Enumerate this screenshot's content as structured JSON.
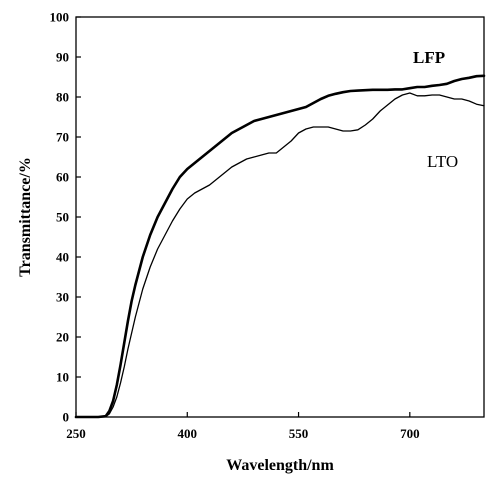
{
  "chart_data": {
    "type": "line",
    "title": "",
    "xlabel": "Wavelength/nm",
    "ylabel": "Transmittance/%",
    "xlim": [
      250,
      800
    ],
    "ylim": [
      0,
      100
    ],
    "xticks": [
      250,
      400,
      550,
      700
    ],
    "yticks": [
      0,
      10,
      20,
      30,
      40,
      50,
      60,
      70,
      80,
      90,
      100
    ],
    "grid": false,
    "legend": "inline labels near curves (upper-right)",
    "series": [
      {
        "name": "LFP",
        "color": "#000000",
        "line_weight": "bold",
        "x": [
          250,
          260,
          270,
          280,
          290,
          295,
          300,
          305,
          310,
          315,
          320,
          325,
          330,
          335,
          340,
          350,
          360,
          370,
          380,
          390,
          400,
          410,
          420,
          430,
          440,
          450,
          460,
          470,
          480,
          490,
          500,
          510,
          520,
          530,
          540,
          550,
          560,
          570,
          580,
          590,
          600,
          610,
          620,
          630,
          640,
          650,
          660,
          670,
          680,
          690,
          700,
          710,
          720,
          730,
          740,
          750,
          760,
          770,
          780,
          790,
          800
        ],
        "values": [
          0,
          0,
          0,
          0,
          0.2,
          1.5,
          4,
          8,
          13,
          18.5,
          24,
          29,
          33,
          36.5,
          40,
          45.5,
          50,
          53.5,
          57,
          60,
          62,
          63.5,
          65,
          66.5,
          68,
          69.5,
          71,
          72,
          73,
          74,
          74.5,
          75,
          75.5,
          76,
          76.5,
          77,
          77.5,
          78.5,
          79.5,
          80.3,
          80.8,
          81.2,
          81.5,
          81.6,
          81.7,
          81.8,
          81.8,
          81.8,
          81.9,
          81.9,
          82.2,
          82.5,
          82.5,
          82.8,
          83,
          83.3,
          84,
          84.5,
          84.8,
          85.2,
          85.3
        ]
      },
      {
        "name": "LTO",
        "color": "#000000",
        "line_weight": "normal",
        "x": [
          250,
          260,
          270,
          280,
          290,
          295,
          300,
          305,
          310,
          315,
          320,
          325,
          330,
          335,
          340,
          350,
          360,
          370,
          380,
          390,
          400,
          410,
          420,
          430,
          440,
          450,
          460,
          470,
          480,
          490,
          500,
          510,
          520,
          530,
          540,
          550,
          560,
          570,
          580,
          590,
          600,
          610,
          620,
          630,
          640,
          650,
          660,
          670,
          680,
          690,
          700,
          710,
          720,
          730,
          740,
          750,
          760,
          770,
          780,
          790,
          800
        ],
        "values": [
          0,
          0,
          0,
          0,
          0.1,
          0.8,
          2.5,
          5,
          8.5,
          12.5,
          17,
          21,
          25,
          28.5,
          32,
          37.5,
          42,
          45.5,
          49,
          52,
          54.5,
          56,
          57,
          58,
          59.5,
          61,
          62.5,
          63.5,
          64.5,
          65,
          65.5,
          66,
          66,
          67.5,
          69,
          71,
          72,
          72.5,
          72.5,
          72.5,
          72,
          71.5,
          71.5,
          71.8,
          73,
          74.5,
          76.5,
          78,
          79.5,
          80.5,
          81,
          80.3,
          80.3,
          80.5,
          80.5,
          80,
          79.5,
          79.5,
          79,
          78.2,
          77.8
        ]
      }
    ],
    "annotations": [
      "LFP",
      "LTO"
    ]
  }
}
